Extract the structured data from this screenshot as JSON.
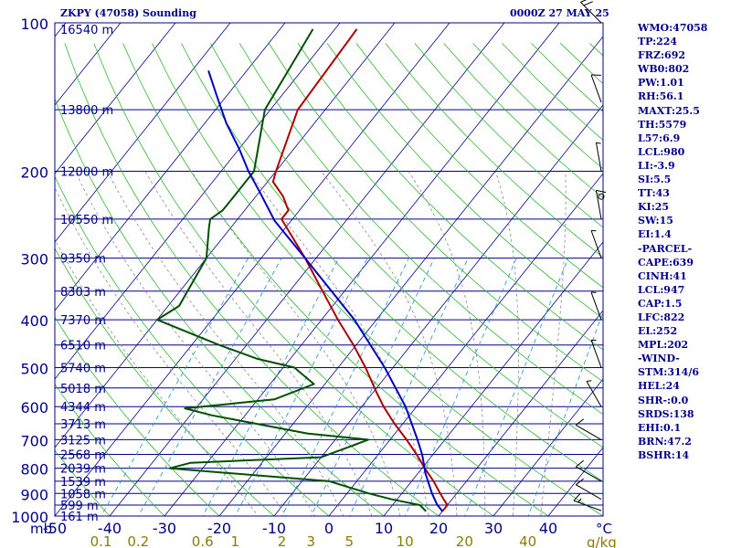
{
  "header": {
    "title": "ZKPY (47058) Sounding",
    "date": "0000Z 27 MAY 25"
  },
  "indices": [
    "WMO:47058",
    "TP:224",
    "FRZ:692",
    "WB0:802",
    "PW:1.01",
    "RH:56.1",
    "MAXT:25.5",
    "TH:5579",
    "L57:6.9",
    "LCL:980",
    "LI:-3.9",
    "SI:5.5",
    "TT:43",
    "KI:25",
    "SW:15",
    "EI:1.4",
    "-PARCEL-",
    "CAPE:639",
    "CINH:41",
    "LCL:947",
    "CAP:1.5",
    "LFC:822",
    "EL:252",
    "MPL:202",
    "-WIND-",
    "STM:314/6",
    "HEL:24",
    "SHR-:0.0",
    "SRDS:138",
    "EHI:0.1",
    "BRN:47.2",
    "BSHR:14"
  ],
  "colors": {
    "frame": "#00008b",
    "isobar": "#00008b",
    "isotherm": "#00008b",
    "dry_adiabat": "#2eb82e",
    "moist_adiabat": "#8a8a8a",
    "mixing_ratio": "#3399cc",
    "temperature": "#b00000",
    "dewpoint": "#005000",
    "parcel": "#0000c0",
    "mixing_label": "#8b7d00",
    "axis_text": "#00008b"
  },
  "chart_data": {
    "type": "skew-t",
    "y_axis": "mb",
    "x_axis": "°C",
    "mixing_unit": "g/kg",
    "ylim": [
      1000,
      100
    ],
    "xlim": [
      -50,
      50
    ],
    "pressure_ticks": [
      100,
      200,
      300,
      400,
      500,
      600,
      700,
      800,
      900,
      1000
    ],
    "temp_ticks": [
      -50,
      -40,
      -30,
      -20,
      -10,
      0,
      10,
      20,
      30,
      40
    ],
    "mixing_ratio_ticks": [
      0.1,
      0.2,
      0.6,
      1.0,
      2.0,
      3.0,
      5.0,
      10.0,
      20.0,
      40.0
    ],
    "heights": [
      {
        "p": 103,
        "label": "16540 m"
      },
      {
        "p": 150,
        "label": "13800 m"
      },
      {
        "p": 200,
        "label": "12000 m"
      },
      {
        "p": 250,
        "label": "10550 m"
      },
      {
        "p": 300,
        "label": "9350 m"
      },
      {
        "p": 350,
        "label": "8303 m"
      },
      {
        "p": 400,
        "label": "7370 m"
      },
      {
        "p": 450,
        "label": "6510 m"
      },
      {
        "p": 500,
        "label": "5740 m"
      },
      {
        "p": 550,
        "label": "5018 m"
      },
      {
        "p": 600,
        "label": "4344 m"
      },
      {
        "p": 650,
        "label": "3713 m"
      },
      {
        "p": 700,
        "label": "3125 m"
      },
      {
        "p": 750,
        "label": "2568 m"
      },
      {
        "p": 800,
        "label": "2039 m"
      },
      {
        "p": 850,
        "label": "1539 m"
      },
      {
        "p": 900,
        "label": "1058 m"
      },
      {
        "p": 950,
        "label": "599 m"
      },
      {
        "p": 1000,
        "label": "161 m"
      }
    ],
    "series": [
      {
        "key": "temperature",
        "points": [
          [
            978,
            20
          ],
          [
            950,
            20
          ],
          [
            925,
            18.5
          ],
          [
            900,
            17
          ],
          [
            850,
            14
          ],
          [
            800,
            10.5
          ],
          [
            750,
            7
          ],
          [
            700,
            3
          ],
          [
            650,
            -1.5
          ],
          [
            600,
            -6
          ],
          [
            560,
            -9.5
          ],
          [
            500,
            -15
          ],
          [
            450,
            -20.5
          ],
          [
            400,
            -27
          ],
          [
            350,
            -34
          ],
          [
            300,
            -42
          ],
          [
            250,
            -52
          ],
          [
            240,
            -52
          ],
          [
            235,
            -53
          ],
          [
            225,
            -55
          ],
          [
            210,
            -59
          ],
          [
            200,
            -60
          ],
          [
            150,
            -65
          ],
          [
            103,
            -66
          ]
        ]
      },
      {
        "key": "dewpoint",
        "points": [
          [
            978,
            17
          ],
          [
            950,
            15
          ],
          [
            925,
            9
          ],
          [
            900,
            4
          ],
          [
            850,
            -5
          ],
          [
            800,
            -36
          ],
          [
            780,
            -33
          ],
          [
            760,
            -10
          ],
          [
            720,
            -6
          ],
          [
            700,
            -4
          ],
          [
            680,
            -16
          ],
          [
            625,
            -36
          ],
          [
            605,
            -42
          ],
          [
            580,
            -27
          ],
          [
            540,
            -22
          ],
          [
            500,
            -28
          ],
          [
            480,
            -36
          ],
          [
            450,
            -45
          ],
          [
            400,
            -60
          ],
          [
            375,
            -58
          ],
          [
            300,
            -60
          ],
          [
            260,
            -64
          ],
          [
            250,
            -65
          ],
          [
            240,
            -64
          ],
          [
            225,
            -64
          ],
          [
            210,
            -64
          ],
          [
            200,
            -64
          ],
          [
            150,
            -71
          ],
          [
            103,
            -74
          ]
        ]
      },
      {
        "key": "parcel",
        "points": [
          [
            978,
            20
          ],
          [
            947,
            18
          ],
          [
            900,
            15.5
          ],
          [
            822,
            11.5
          ],
          [
            750,
            8
          ],
          [
            700,
            5
          ],
          [
            600,
            -2
          ],
          [
            500,
            -11.5
          ],
          [
            400,
            -24
          ],
          [
            300,
            -42
          ],
          [
            252,
            -53
          ],
          [
            220,
            -60
          ],
          [
            200,
            -65
          ],
          [
            180,
            -70
          ],
          [
            160,
            -76
          ],
          [
            140,
            -82
          ],
          [
            125,
            -87
          ]
        ]
      }
    ],
    "winds": [
      {
        "p": 100,
        "dir": 315,
        "spd": 20
      },
      {
        "p": 145,
        "dir": 340,
        "spd": 10
      },
      {
        "p": 200,
        "dir": 350,
        "spd": 5
      },
      {
        "p": 225,
        "dir": 90,
        "spd": 0
      },
      {
        "p": 250,
        "dir": 350,
        "spd": 10
      },
      {
        "p": 300,
        "dir": 340,
        "spd": 5
      },
      {
        "p": 400,
        "dir": 340,
        "spd": 5
      },
      {
        "p": 500,
        "dir": 340,
        "spd": 5
      },
      {
        "p": 600,
        "dir": 330,
        "spd": 5
      },
      {
        "p": 700,
        "dir": 300,
        "spd": 10
      },
      {
        "p": 850,
        "dir": 300,
        "spd": 10
      },
      {
        "p": 925,
        "dir": 300,
        "spd": 10
      },
      {
        "p": 975,
        "dir": 290,
        "spd": 15
      }
    ]
  }
}
